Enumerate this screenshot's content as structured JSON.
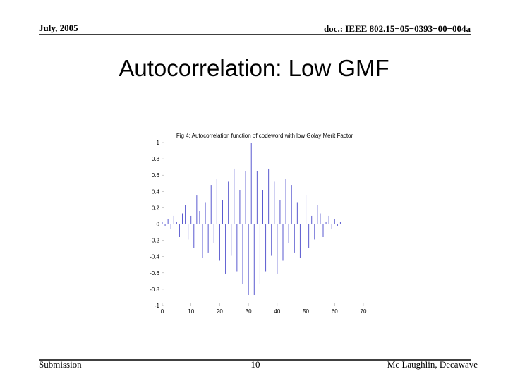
{
  "header": {
    "date": "July, 2005",
    "doc": "doc.: IEEE 802.15−05−0393−00−004a"
  },
  "title": "Autocorrelation: Low GMF",
  "chart_data": {
    "type": "stem",
    "title": "Fig 4: Autocorrelation function of codeword with low Golay Merit Factor",
    "x": [
      0,
      1,
      2,
      3,
      4,
      5,
      6,
      7,
      8,
      9,
      10,
      11,
      12,
      13,
      14,
      15,
      16,
      17,
      18,
      19,
      20,
      21,
      22,
      23,
      24,
      25,
      26,
      27,
      28,
      29,
      30,
      31,
      32,
      33,
      34,
      35,
      36,
      37,
      38,
      39,
      40,
      41,
      42,
      43,
      44,
      45,
      46,
      47,
      48,
      49,
      50,
      51,
      52,
      53,
      54,
      55,
      56,
      57,
      58,
      59,
      60,
      61,
      62
    ],
    "values": [
      0.03,
      -0.03,
      0.06,
      -0.06,
      0.1,
      0.03,
      -0.16,
      0.13,
      0.23,
      -0.19,
      0.1,
      -0.29,
      0.35,
      0.16,
      -0.42,
      0.26,
      -0.35,
      0.48,
      -0.23,
      0.55,
      -0.45,
      0.29,
      -0.61,
      0.52,
      -0.39,
      0.68,
      -0.58,
      0.42,
      -0.74,
      0.65,
      -0.87,
      1,
      -0.87,
      0.65,
      -0.74,
      0.42,
      -0.58,
      0.68,
      -0.39,
      0.52,
      -0.61,
      0.29,
      -0.45,
      0.55,
      -0.23,
      0.48,
      -0.35,
      0.26,
      -0.42,
      0.16,
      0.35,
      -0.29,
      0.1,
      -0.19,
      0.23,
      0.13,
      -0.16,
      0.03,
      0.1,
      -0.06,
      0.06,
      -0.03,
      0.03
    ],
    "color": "#5a5ad0",
    "xlim": [
      0,
      70
    ],
    "ylim": [
      -1,
      1
    ],
    "xticks": [
      0,
      10,
      20,
      30,
      40,
      50,
      60,
      70
    ],
    "yticks": [
      -1,
      -0.8,
      -0.6,
      -0.4,
      -0.2,
      0,
      0.2,
      0.4,
      0.6,
      0.8,
      1
    ]
  },
  "footer": {
    "left": "Submission",
    "page": "10",
    "right": "Mc Laughlin, Decawave"
  }
}
